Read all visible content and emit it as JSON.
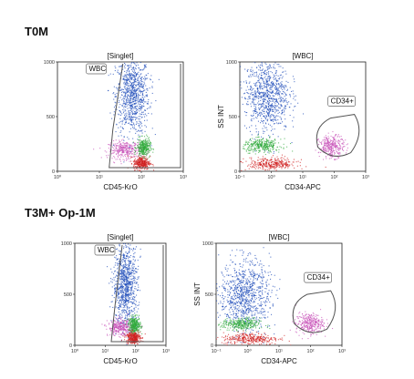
{
  "sections": [
    {
      "title": "T0M"
    },
    {
      "title": "T3M+ Op-1M"
    }
  ],
  "colors": {
    "blue": "#1a47b8",
    "magenta": "#c850b8",
    "green": "#2faa3a",
    "red": "#d02020",
    "gate": "#555555"
  },
  "chart_data": [
    {
      "type": "scatter",
      "panel": "T0M-CD45",
      "title": "[Singlet]",
      "xlabel": "CD45-KrO",
      "ylabel": "",
      "xscale": "log",
      "xlim": [
        1,
        1000
      ],
      "ylim": [
        0,
        1000
      ],
      "xticks": [
        "10⁰",
        "10¹",
        "10²",
        "10³"
      ],
      "yticks": [
        "0",
        "500",
        "1000"
      ],
      "gate": "WBC",
      "populations": [
        {
          "color": "blue",
          "x_center": 60,
          "y_center": 700,
          "x_spread": 0.2,
          "y_spread": 180
        },
        {
          "color": "magenta",
          "x_center": 40,
          "y_center": 200,
          "x_spread": 0.2,
          "y_spread": 40
        },
        {
          "color": "green",
          "x_center": 110,
          "y_center": 220,
          "x_spread": 0.08,
          "y_spread": 40
        },
        {
          "color": "red",
          "x_center": 100,
          "y_center": 80,
          "x_spread": 0.1,
          "y_spread": 30
        }
      ]
    },
    {
      "type": "scatter",
      "panel": "T0M-CD34",
      "title": "[WBC]",
      "xlabel": "CD34-APC",
      "ylabel": "SS INT",
      "xscale": "log",
      "xlim": [
        0.1,
        1000
      ],
      "ylim": [
        0,
        1000
      ],
      "xticks": [
        "10⁻¹",
        "10⁰",
        "10¹",
        "10²",
        "10³"
      ],
      "yticks": [
        "0",
        "500",
        "1000"
      ],
      "gate": "CD34+",
      "populations": [
        {
          "color": "blue",
          "x_center": 0.7,
          "y_center": 700,
          "x_spread": 0.35,
          "y_spread": 170
        },
        {
          "color": "green",
          "x_center": 0.5,
          "y_center": 240,
          "x_spread": 0.3,
          "y_spread": 30
        },
        {
          "color": "red",
          "x_center": 1.0,
          "y_center": 70,
          "x_spread": 0.4,
          "y_spread": 30
        },
        {
          "color": "magenta",
          "x_center": 80,
          "y_center": 230,
          "x_spread": 0.2,
          "y_spread": 50
        }
      ]
    },
    {
      "type": "scatter",
      "panel": "T3M-CD45",
      "title": "[Singlet]",
      "xlabel": "CD45-KrO",
      "ylabel": "",
      "xscale": "log",
      "xlim": [
        1,
        1000
      ],
      "ylim": [
        0,
        1000
      ],
      "xticks": [
        "10⁰",
        "10¹",
        "10²",
        "10³"
      ],
      "yticks": [
        "0",
        "500",
        "1000"
      ],
      "gate": "WBC",
      "populations": [
        {
          "color": "blue",
          "x_center": 45,
          "y_center": 600,
          "x_spread": 0.2,
          "y_spread": 200
        },
        {
          "color": "magenta",
          "x_center": 30,
          "y_center": 180,
          "x_spread": 0.2,
          "y_spread": 40
        },
        {
          "color": "green",
          "x_center": 90,
          "y_center": 200,
          "x_spread": 0.1,
          "y_spread": 40
        },
        {
          "color": "red",
          "x_center": 80,
          "y_center": 80,
          "x_spread": 0.12,
          "y_spread": 30
        }
      ]
    },
    {
      "type": "scatter",
      "panel": "T3M-CD34",
      "title": "[WBC]",
      "xlabel": "CD34-APC",
      "ylabel": "SS INT",
      "xscale": "log",
      "xlim": [
        0.1,
        1000
      ],
      "ylim": [
        0,
        1000
      ],
      "xticks": [
        "10⁻¹",
        "10⁰",
        "10¹",
        "10²",
        "10³"
      ],
      "yticks": [
        "0",
        "500",
        "1000"
      ],
      "gate": "CD34+",
      "populations": [
        {
          "color": "blue",
          "x_center": 0.8,
          "y_center": 500,
          "x_spread": 0.4,
          "y_spread": 170
        },
        {
          "color": "green",
          "x_center": 0.6,
          "y_center": 210,
          "x_spread": 0.3,
          "y_spread": 30
        },
        {
          "color": "red",
          "x_center": 1.2,
          "y_center": 70,
          "x_spread": 0.45,
          "y_spread": 30
        },
        {
          "color": "magenta",
          "x_center": 90,
          "y_center": 220,
          "x_spread": 0.22,
          "y_spread": 50
        }
      ]
    }
  ]
}
